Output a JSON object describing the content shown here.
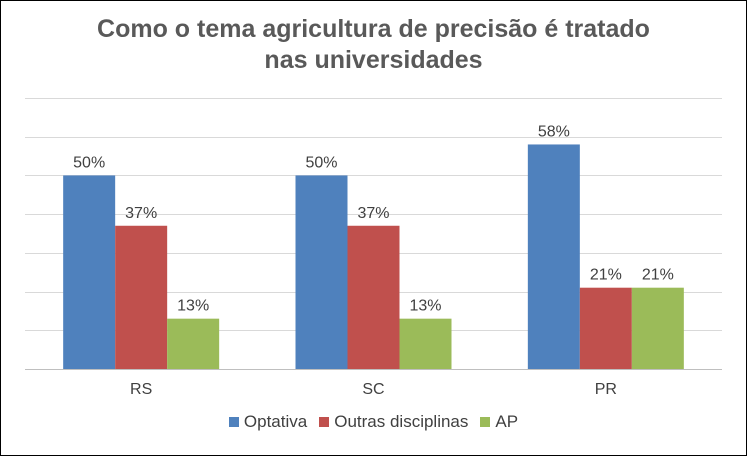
{
  "chart_data": {
    "type": "bar",
    "title_lines": [
      "Como o tema agricultura de precisão é tratado",
      "nas universidades"
    ],
    "categories": [
      "RS",
      "SC",
      "PR"
    ],
    "series": [
      {
        "name": "Optativa",
        "color": "#4F81BD",
        "values": [
          50,
          50,
          58
        ],
        "labels": [
          "50%",
          "50%",
          "58%"
        ]
      },
      {
        "name": "Outras disciplinas",
        "color": "#C0504D",
        "values": [
          37,
          37,
          21
        ],
        "labels": [
          "37%",
          "37%",
          "21%"
        ]
      },
      {
        "name": "AP",
        "color": "#9BBB59",
        "values": [
          13,
          13,
          21
        ],
        "labels": [
          "13%",
          "13%",
          "21%"
        ]
      }
    ],
    "ylim": [
      0,
      70
    ],
    "grid": true,
    "legend_position": "bottom"
  }
}
